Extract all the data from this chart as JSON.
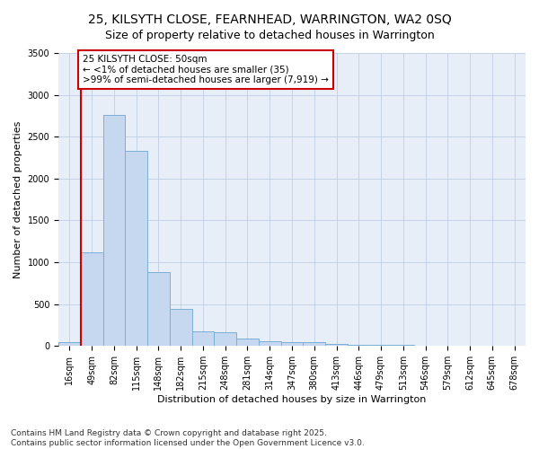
{
  "title_line1": "25, KILSYTH CLOSE, FEARNHEAD, WARRINGTON, WA2 0SQ",
  "title_line2": "Size of property relative to detached houses in Warrington",
  "xlabel": "Distribution of detached houses by size in Warrington",
  "ylabel": "Number of detached properties",
  "categories": [
    "16sqm",
    "49sqm",
    "82sqm",
    "115sqm",
    "148sqm",
    "182sqm",
    "215sqm",
    "248sqm",
    "281sqm",
    "314sqm",
    "347sqm",
    "380sqm",
    "413sqm",
    "446sqm",
    "479sqm",
    "513sqm",
    "546sqm",
    "579sqm",
    "612sqm",
    "645sqm",
    "678sqm"
  ],
  "values": [
    50,
    1120,
    2760,
    2330,
    880,
    440,
    175,
    165,
    90,
    60,
    45,
    45,
    30,
    15,
    15,
    10,
    5,
    3,
    0,
    0,
    0
  ],
  "bar_color": "#c5d8f0",
  "bar_edge_color": "#7bafd4",
  "annotation_line1": "25 KILSYTH CLOSE: 50sqm",
  "annotation_line2": "← <1% of detached houses are smaller (35)",
  "annotation_line3": ">99% of semi-detached houses are larger (7,919) →",
  "vline_color": "#cc0000",
  "vline_x_index": 0.5,
  "ylim": [
    0,
    3500
  ],
  "yticks": [
    0,
    500,
    1000,
    1500,
    2000,
    2500,
    3000,
    3500
  ],
  "bg_color": "#e8eef8",
  "footer": "Contains HM Land Registry data © Crown copyright and database right 2025.\nContains public sector information licensed under the Open Government Licence v3.0.",
  "title_fontsize": 10,
  "subtitle_fontsize": 9,
  "axis_label_fontsize": 8,
  "tick_fontsize": 7,
  "annotation_fontsize": 7.5,
  "footer_fontsize": 6.5
}
